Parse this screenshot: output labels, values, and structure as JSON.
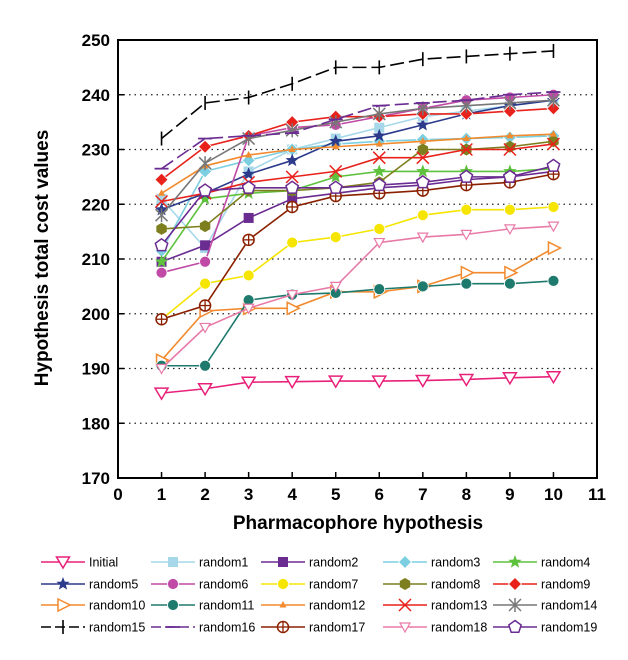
{
  "chart_data": {
    "type": "line",
    "xlabel": "Pharmacophore hypothesis",
    "ylabel": "Hypothesis total cost values",
    "xlim": [
      0,
      11
    ],
    "ylim": [
      170,
      250
    ],
    "xticks": [
      0,
      1,
      2,
      3,
      4,
      5,
      6,
      7,
      8,
      9,
      10,
      11
    ],
    "yticks": [
      170,
      180,
      190,
      200,
      210,
      220,
      230,
      240,
      250
    ],
    "grid": "horizontal dotted",
    "legend_position": "bottom",
    "x": [
      1,
      2,
      3,
      4,
      5,
      6,
      7,
      8,
      9,
      10
    ],
    "series": [
      {
        "name": "Initial",
        "color": "#e8207a",
        "marker": "triangle-down",
        "values": [
          185.5,
          186.3,
          187.5,
          187.6,
          187.7,
          187.7,
          187.8,
          188.0,
          188.3,
          188.5
        ]
      },
      {
        "name": "random1",
        "color": "#a6d8ea",
        "marker": "square",
        "values": [
          221.0,
          212.0,
          226.0,
          230.0,
          232.0,
          234.0,
          236.0,
          237.0,
          238.0,
          239.0
        ]
      },
      {
        "name": "random2",
        "color": "#6a2c91",
        "marker": "square",
        "values": [
          209.5,
          212.5,
          217.5,
          221.0,
          222.0,
          223.0,
          223.5,
          224.5,
          225.0,
          226.0
        ]
      },
      {
        "name": "random3",
        "color": "#7ccfe0",
        "marker": "diamond",
        "values": [
          211.5,
          226.0,
          228.0,
          230.0,
          231.0,
          231.5,
          231.8,
          232.0,
          232.2,
          232.5
        ]
      },
      {
        "name": "random4",
        "color": "#5ec23d",
        "marker": "star",
        "values": [
          209.5,
          221.0,
          222.0,
          222.5,
          225.0,
          226.0,
          226.0,
          226.0,
          226.0,
          226.5
        ]
      },
      {
        "name": "random5",
        "color": "#2c3a8c",
        "marker": "star",
        "values": [
          219.0,
          222.0,
          225.5,
          228.0,
          231.5,
          232.5,
          234.5,
          236.5,
          238.0,
          239.0
        ]
      },
      {
        "name": "random6",
        "color": "#c04aa6",
        "marker": "circle",
        "values": [
          207.5,
          209.5,
          232.5,
          234.0,
          234.5,
          236.0,
          237.5,
          239.0,
          239.5,
          240.0
        ]
      },
      {
        "name": "random7",
        "color": "#f5e500",
        "marker": "circle",
        "values": [
          199.0,
          205.5,
          207.0,
          213.0,
          214.0,
          215.5,
          218.0,
          219.0,
          219.0,
          219.5
        ]
      },
      {
        "name": "random8",
        "color": "#7d7f1e",
        "marker": "hexagon",
        "values": [
          215.5,
          216.0,
          222.5,
          222.5,
          223.0,
          224.0,
          230.0,
          230.0,
          230.5,
          231.5
        ]
      },
      {
        "name": "random9",
        "color": "#e8211a",
        "marker": "diamond",
        "values": [
          224.5,
          230.5,
          232.5,
          235.0,
          236.0,
          236.0,
          236.5,
          236.5,
          237.0,
          237.5
        ]
      },
      {
        "name": "random10",
        "color": "#f28a2e",
        "marker": "triangle-right",
        "values": [
          191.5,
          200.5,
          201.0,
          201.0,
          204.0,
          204.0,
          205.0,
          207.5,
          207.5,
          212.0
        ]
      },
      {
        "name": "random11",
        "color": "#1f7a6e",
        "marker": "circle",
        "values": [
          190.5,
          190.5,
          202.5,
          203.5,
          203.8,
          204.5,
          205.0,
          205.5,
          205.5,
          206.0
        ]
      },
      {
        "name": "random12",
        "color": "#f28a2e",
        "marker": "triangle-small",
        "values": [
          222.0,
          227.0,
          229.0,
          230.0,
          230.5,
          231.0,
          231.5,
          232.0,
          232.5,
          232.8
        ]
      },
      {
        "name": "random13",
        "color": "#e8211a",
        "marker": "x",
        "values": [
          220.5,
          222.0,
          224.0,
          225.0,
          226.0,
          228.5,
          228.5,
          230.0,
          230.0,
          231.0
        ]
      },
      {
        "name": "random14",
        "color": "#777777",
        "marker": "asterisk",
        "values": [
          218.0,
          227.5,
          232.0,
          233.5,
          235.0,
          236.5,
          237.5,
          238.0,
          238.5,
          239.0
        ]
      },
      {
        "name": "random15",
        "color": "#000000",
        "marker": "vbar",
        "dashed": true,
        "values": [
          232.0,
          238.5,
          239.5,
          242.0,
          245.0,
          245.0,
          246.5,
          247.0,
          247.5,
          248.0
        ]
      },
      {
        "name": "random16",
        "color": "#6a2c91",
        "marker": "hbar",
        "dashed": true,
        "values": [
          226.5,
          232.0,
          232.5,
          233.0,
          235.5,
          238.0,
          238.5,
          239.0,
          240.0,
          240.5
        ]
      },
      {
        "name": "random17",
        "color": "#8b2000",
        "marker": "circle-plus",
        "values": [
          199.0,
          201.5,
          213.5,
          219.5,
          221.5,
          222.0,
          222.5,
          223.5,
          224.0,
          225.5
        ]
      },
      {
        "name": "random18",
        "color": "#e87aa8",
        "marker": "triangle-down-open",
        "values": [
          190.0,
          197.5,
          201.0,
          203.5,
          205.0,
          213.0,
          214.0,
          214.5,
          215.5,
          216.0
        ]
      },
      {
        "name": "random19",
        "color": "#6a2c91",
        "marker": "pentagon",
        "values": [
          212.5,
          222.5,
          223.0,
          223.0,
          223.0,
          223.5,
          224.0,
          225.0,
          225.0,
          227.0
        ]
      }
    ]
  }
}
